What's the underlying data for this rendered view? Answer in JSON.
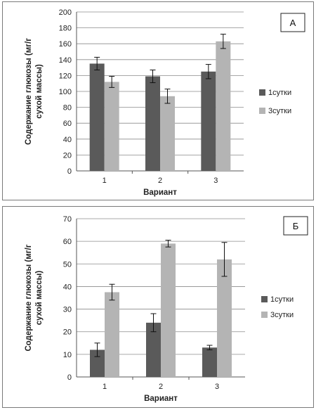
{
  "colors": {
    "series1": "#5a5a5a",
    "series2": "#b4b4b4",
    "grid": "#8c8c8c",
    "axis": "#555555",
    "text": "#222222"
  },
  "chart_data": [
    {
      "type": "bar",
      "panel_label": "А",
      "categories": [
        "1",
        "2",
        "3"
      ],
      "series": [
        {
          "name": "1сутки",
          "values": [
            135,
            119,
            125
          ],
          "errors": [
            8,
            8,
            9
          ]
        },
        {
          "name": "3сутки",
          "values": [
            112,
            94,
            163
          ],
          "errors": [
            7,
            9,
            9
          ]
        }
      ],
      "xlabel": "Вариант",
      "ylabel": [
        "Содержание глюкозы (мг/г",
        "сухой массы)"
      ],
      "ylim": [
        0,
        200
      ],
      "yticks": [
        0,
        20,
        40,
        60,
        80,
        100,
        120,
        140,
        160,
        180,
        200
      ],
      "grid": true,
      "legend_position": "right"
    },
    {
      "type": "bar",
      "panel_label": "Б",
      "categories": [
        "1",
        "2",
        "3"
      ],
      "series": [
        {
          "name": "1сутки",
          "values": [
            12,
            24,
            13
          ],
          "errors": [
            3,
            4,
            1
          ]
        },
        {
          "name": "3сутки",
          "values": [
            37.5,
            59,
            52
          ],
          "errors": [
            3.5,
            1.5,
            7.5
          ]
        }
      ],
      "xlabel": "Вариант",
      "ylabel": [
        "Содержание глюкозы (мг/г",
        "сухой массы)"
      ],
      "ylim": [
        0,
        70
      ],
      "yticks": [
        0,
        10,
        20,
        30,
        40,
        50,
        60,
        70
      ],
      "grid": true,
      "legend_position": "right"
    }
  ]
}
